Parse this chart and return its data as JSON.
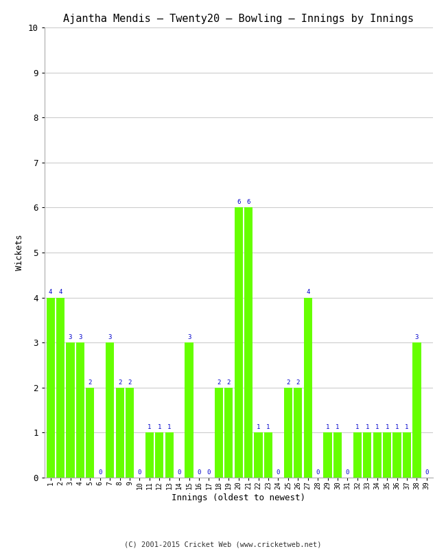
{
  "title": "Ajantha Mendis – Twenty20 – Bowling – Innings by Innings",
  "xlabel": "Innings (oldest to newest)",
  "ylabel": "Wickets",
  "ylim": [
    0,
    10
  ],
  "yticks": [
    0,
    1,
    2,
    3,
    4,
    5,
    6,
    7,
    8,
    9,
    10
  ],
  "bar_color": "#66ff00",
  "bar_edge_color": "#66ff00",
  "label_color": "#0000cc",
  "background_color": "#ffffff",
  "grid_color": "#cccccc",
  "innings": [
    1,
    2,
    3,
    4,
    5,
    6,
    7,
    8,
    9,
    10,
    11,
    12,
    13,
    14,
    15,
    16,
    17,
    18,
    19,
    20,
    21,
    22,
    23,
    24,
    25,
    26,
    27,
    28,
    29,
    30,
    31,
    32,
    33,
    34,
    35,
    36,
    37,
    38,
    39
  ],
  "wickets": [
    4,
    4,
    3,
    3,
    2,
    0,
    3,
    2,
    2,
    0,
    1,
    1,
    1,
    0,
    3,
    0,
    0,
    2,
    2,
    6,
    6,
    1,
    1,
    0,
    2,
    2,
    4,
    0,
    1,
    1,
    0,
    1,
    1,
    1,
    1,
    1,
    1,
    3,
    0
  ],
  "footer": "(C) 2001-2015 Cricket Web (www.cricketweb.net)"
}
